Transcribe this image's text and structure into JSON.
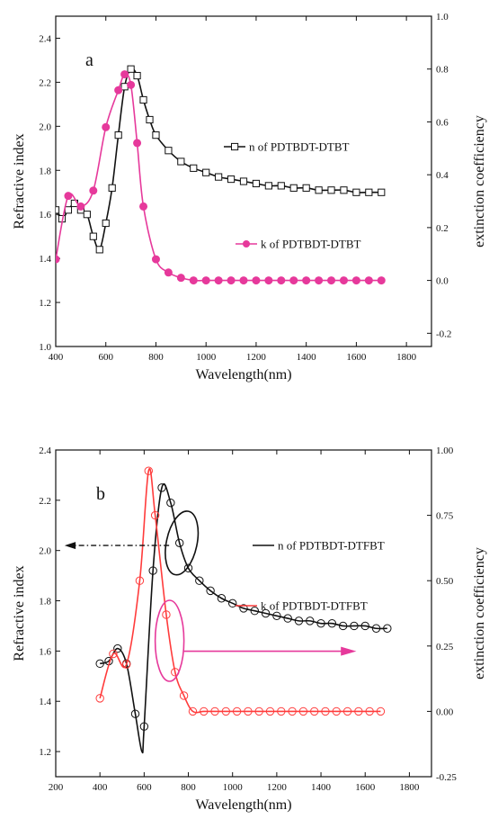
{
  "chart_data": [
    {
      "type": "line",
      "panel_label": "a",
      "xlabel": "Wavelength(nm)",
      "ylabel": "Refractive index",
      "y2label": "extinction coefficiency",
      "xlim": [
        400,
        1900
      ],
      "ylim": [
        1.0,
        2.5
      ],
      "y2lim": [
        -0.25,
        1.0
      ],
      "xticks": [
        "400",
        "600",
        "800",
        "1000",
        "1200",
        "1400",
        "1600",
        "1800"
      ],
      "yticks": [
        "1.0",
        "1.2",
        "1.4",
        "1.6",
        "1.8",
        "2.0",
        "2.2",
        "2.4"
      ],
      "y2ticks": [
        "-0.2",
        "0.0",
        "0.2",
        "0.4",
        "0.6",
        "0.8",
        "1.0"
      ],
      "grid": false,
      "series": [
        {
          "name": "n of PDTBDT-DTBT",
          "axis": "left",
          "color": "#111111",
          "marker": "open-square",
          "x": [
            400,
            425,
            450,
            475,
            500,
            525,
            550,
            575,
            600,
            625,
            650,
            675,
            700,
            725,
            750,
            775,
            800,
            850,
            900,
            950,
            1000,
            1050,
            1100,
            1150,
            1200,
            1250,
            1300,
            1350,
            1400,
            1450,
            1500,
            1550,
            1600,
            1650,
            1700
          ],
          "y": [
            1.62,
            1.58,
            1.62,
            1.65,
            1.62,
            1.6,
            1.5,
            1.44,
            1.56,
            1.72,
            1.96,
            2.18,
            2.26,
            2.23,
            2.12,
            2.03,
            1.96,
            1.89,
            1.84,
            1.81,
            1.79,
            1.77,
            1.76,
            1.75,
            1.74,
            1.73,
            1.73,
            1.72,
            1.72,
            1.71,
            1.71,
            1.71,
            1.7,
            1.7,
            1.7
          ]
        },
        {
          "name": "k of PDTBDT-DTBT",
          "axis": "right",
          "color": "#e6399b",
          "marker": "filled-circle",
          "x": [
            400,
            450,
            500,
            550,
            600,
            650,
            675,
            700,
            725,
            750,
            800,
            850,
            900,
            950,
            1000,
            1050,
            1100,
            1150,
            1200,
            1250,
            1300,
            1350,
            1400,
            1450,
            1500,
            1550,
            1600,
            1650,
            1700
          ],
          "y": [
            0.08,
            0.32,
            0.28,
            0.34,
            0.58,
            0.72,
            0.78,
            0.74,
            0.52,
            0.28,
            0.08,
            0.03,
            0.01,
            0.0,
            0.0,
            0.0,
            0.0,
            0.0,
            0.0,
            0.0,
            0.0,
            0.0,
            0.0,
            0.0,
            0.0,
            0.0,
            0.0,
            0.0,
            0.0
          ]
        }
      ]
    },
    {
      "type": "line",
      "panel_label": "b",
      "xlabel": "Wavelength(nm)",
      "ylabel": "Refractive index",
      "y2label": "extinction coefficiency",
      "xlim": [
        200,
        1900
      ],
      "ylim": [
        1.1,
        2.4
      ],
      "y2lim": [
        -0.25,
        1.0
      ],
      "xticks": [
        "200",
        "400",
        "600",
        "800",
        "1000",
        "1200",
        "1400",
        "1600",
        "1800"
      ],
      "yticks": [
        "1.2",
        "1.4",
        "1.6",
        "1.8",
        "2.0",
        "2.2",
        "2.4"
      ],
      "y2ticks": [
        "-0.25",
        "0.00",
        "0.25",
        "0.50",
        "0.75",
        "1.00"
      ],
      "grid": false,
      "series": [
        {
          "name": "n of PDTBDT-DTFBT",
          "axis": "left",
          "color": "#111111",
          "marker": "open-circle",
          "x": [
            400,
            440,
            480,
            520,
            560,
            600,
            640,
            680,
            720,
            760,
            800,
            850,
            900,
            950,
            1000,
            1050,
            1100,
            1150,
            1200,
            1250,
            1300,
            1350,
            1400,
            1450,
            1500,
            1550,
            1600,
            1650,
            1700
          ],
          "y": [
            1.55,
            1.56,
            1.61,
            1.55,
            1.35,
            1.3,
            1.92,
            2.25,
            2.19,
            2.03,
            1.93,
            1.88,
            1.84,
            1.81,
            1.79,
            1.77,
            1.76,
            1.75,
            1.74,
            1.73,
            1.72,
            1.72,
            1.71,
            1.71,
            1.7,
            1.7,
            1.7,
            1.69,
            1.69
          ],
          "peak": {
            "x": 590,
            "y": 1.2
          }
        },
        {
          "name": "k of PDTBDT-DTFBT",
          "axis": "right",
          "color": "#ff3b3b",
          "marker": "open-circle",
          "x": [
            400,
            460,
            520,
            580,
            620,
            650,
            700,
            740,
            780,
            820,
            870,
            920,
            970,
            1020,
            1070,
            1120,
            1170,
            1220,
            1270,
            1320,
            1370,
            1420,
            1470,
            1520,
            1570,
            1620,
            1670
          ],
          "y": [
            0.05,
            0.22,
            0.18,
            0.5,
            0.92,
            0.75,
            0.37,
            0.15,
            0.06,
            0.0,
            0.0,
            0.0,
            0.0,
            0.0,
            0.0,
            0.0,
            0.0,
            0.0,
            0.0,
            0.0,
            0.0,
            0.0,
            0.0,
            0.0,
            0.0,
            0.0,
            0.0
          ]
        }
      ],
      "annotations": [
        {
          "type": "ellipse",
          "around": "n of PDTBDT-DTFBT",
          "arrow": "left",
          "color": "#111111"
        },
        {
          "type": "ellipse",
          "around": "k of PDTBDT-DTFBT",
          "arrow": "right",
          "color": "#e6399b"
        }
      ]
    }
  ]
}
